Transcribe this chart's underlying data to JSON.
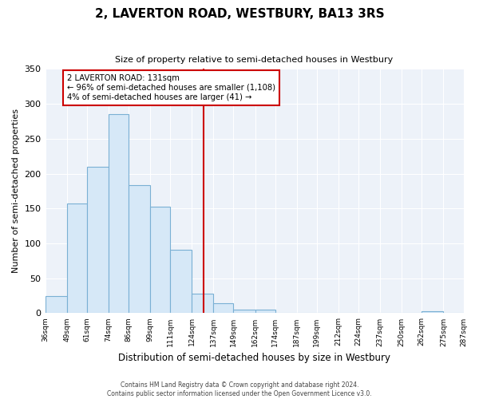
{
  "title": "2, LAVERTON ROAD, WESTBURY, BA13 3RS",
  "subtitle": "Size of property relative to semi-detached houses in Westbury",
  "xlabel": "Distribution of semi-detached houses by size in Westbury",
  "ylabel": "Number of semi-detached properties",
  "bin_edges": [
    36,
    49,
    61,
    74,
    86,
    99,
    111,
    124,
    137,
    149,
    162,
    174,
    187,
    199,
    212,
    224,
    237,
    250,
    262,
    275,
    287
  ],
  "bin_counts": [
    25,
    157,
    210,
    285,
    183,
    152,
    91,
    28,
    14,
    5,
    5,
    0,
    0,
    0,
    0,
    0,
    0,
    0,
    3,
    0
  ],
  "tick_labels": [
    "36sqm",
    "49sqm",
    "61sqm",
    "74sqm",
    "86sqm",
    "99sqm",
    "111sqm",
    "124sqm",
    "137sqm",
    "149sqm",
    "162sqm",
    "174sqm",
    "187sqm",
    "199sqm",
    "212sqm",
    "224sqm",
    "237sqm",
    "250sqm",
    "262sqm",
    "275sqm",
    "287sqm"
  ],
  "bar_color": "#d6e8f7",
  "bar_edge_color": "#7ab0d4",
  "vline_x": 131,
  "vline_color": "#cc0000",
  "ylim": [
    0,
    350
  ],
  "yticks": [
    0,
    50,
    100,
    150,
    200,
    250,
    300,
    350
  ],
  "annotation_title": "2 LAVERTON ROAD: 131sqm",
  "annotation_line1": "← 96% of semi-detached houses are smaller (1,108)",
  "annotation_line2": "4% of semi-detached houses are larger (41) →",
  "annotation_box_color": "#ffffff",
  "annotation_box_edge": "#cc0000",
  "footer_line1": "Contains HM Land Registry data © Crown copyright and database right 2024.",
  "footer_line2": "Contains public sector information licensed under the Open Government Licence v3.0.",
  "background_color": "#ffffff",
  "plot_bg_color": "#edf2f9",
  "grid_color": "#ffffff"
}
